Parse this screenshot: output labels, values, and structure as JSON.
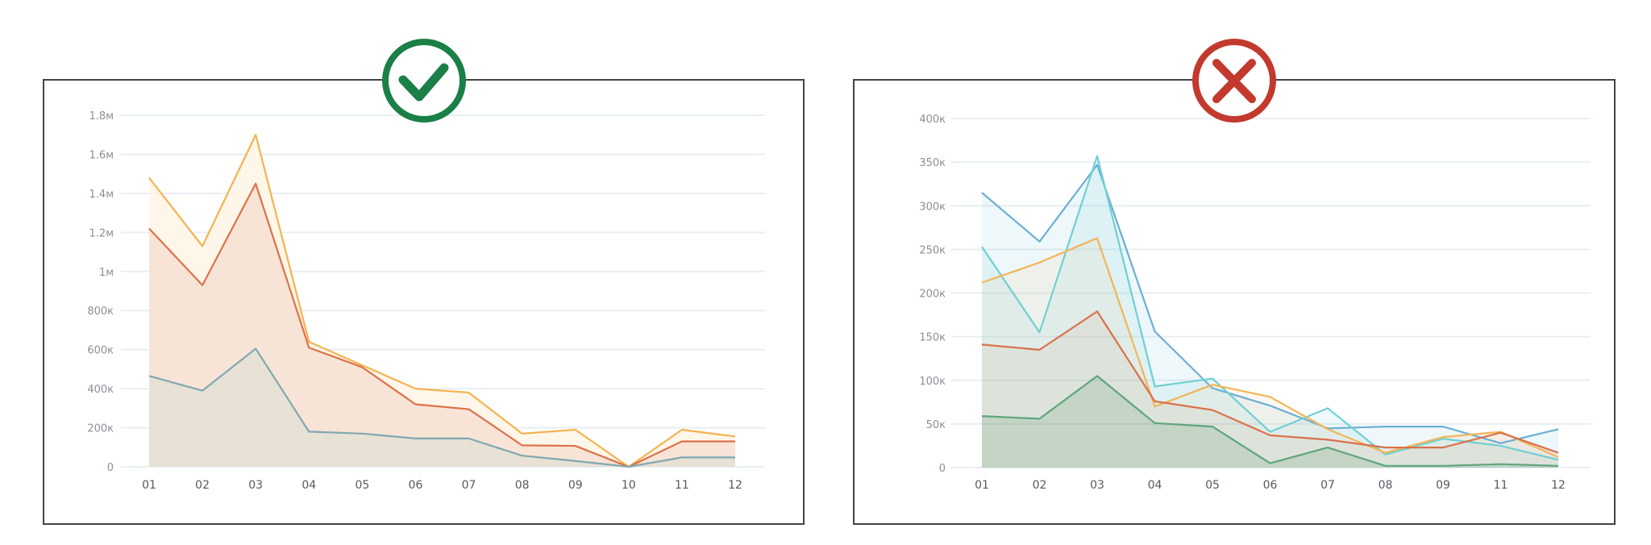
{
  "badges": {
    "left": {
      "icon": "check-circle-icon",
      "color": "#1b7f48"
    },
    "right": {
      "icon": "x-circle-icon",
      "color": "#c2392e"
    }
  },
  "chart_data": [
    {
      "type": "area",
      "verdict": "correct",
      "categories": [
        "01",
        "02",
        "03",
        "04",
        "05",
        "06",
        "07",
        "08",
        "09",
        "10",
        "11",
        "12"
      ],
      "ylim": [
        0,
        1800000
      ],
      "yticks": [
        0,
        200000,
        400000,
        600000,
        800000,
        1000000,
        1200000,
        1400000,
        1600000,
        1800000
      ],
      "ytick_labels": [
        "0",
        "200к",
        "400к",
        "600к",
        "800к",
        "1м",
        "1.2м",
        "1.4м",
        "1.6м",
        "1.8м"
      ],
      "grid": true,
      "series": [
        {
          "color": "#f5b24e",
          "fill": "#fff6ea",
          "values": [
            1480000,
            1130000,
            1700000,
            640000,
            520000,
            400000,
            380000,
            170000,
            190000,
            0,
            190000,
            155000
          ]
        },
        {
          "color": "#dc7148",
          "fill": "#f8e4d6",
          "values": [
            1220000,
            930000,
            1450000,
            610000,
            510000,
            320000,
            295000,
            110000,
            107000,
            0,
            130000,
            130000
          ]
        },
        {
          "color": "#7fa9b0",
          "fill": "#e7e1d6",
          "values": [
            465000,
            390000,
            605000,
            180000,
            170000,
            145000,
            145000,
            57000,
            30000,
            0,
            48000,
            48000
          ]
        }
      ]
    },
    {
      "type": "area",
      "verdict": "incorrect",
      "categories": [
        "01",
        "02",
        "03",
        "04",
        "05",
        "06",
        "07",
        "08",
        "09",
        "11",
        "12"
      ],
      "ylim": [
        0,
        400000
      ],
      "yticks": [
        0,
        50000,
        100000,
        150000,
        200000,
        250000,
        300000,
        350000,
        400000
      ],
      "ytick_labels": [
        "0",
        "50к",
        "100к",
        "150к",
        "200к",
        "250к",
        "300к",
        "350к",
        "400к"
      ],
      "grid": true,
      "series": [
        {
          "color": "#6aafd6",
          "fill": "rgba(120,190,220,0.13)",
          "values": [
            315000,
            259000,
            347000,
            156000,
            91000,
            71000,
            45000,
            47000,
            47000,
            28000,
            44000
          ]
        },
        {
          "color": "#6fd0d3",
          "fill": "rgba(110,205,210,0.12)",
          "values": [
            253000,
            155000,
            357000,
            93000,
            102000,
            41000,
            68000,
            15000,
            33000,
            25000,
            9000
          ]
        },
        {
          "color": "#f3b556",
          "fill": "rgba(240,200,130,0.12)",
          "values": [
            212000,
            235000,
            263000,
            70000,
            95000,
            81000,
            44000,
            17000,
            35000,
            41000,
            12000
          ]
        },
        {
          "color": "#d9714a",
          "fill": "rgba(200,150,120,0.10)",
          "values": [
            141000,
            135000,
            179000,
            76000,
            66000,
            37000,
            32000,
            23000,
            23000,
            40000,
            17000
          ]
        },
        {
          "color": "#5fa57c",
          "fill": "rgba(110,160,120,0.22)",
          "values": [
            59000,
            56000,
            105000,
            51000,
            47000,
            5000,
            23000,
            2000,
            2000,
            4000,
            2000
          ]
        }
      ]
    }
  ]
}
